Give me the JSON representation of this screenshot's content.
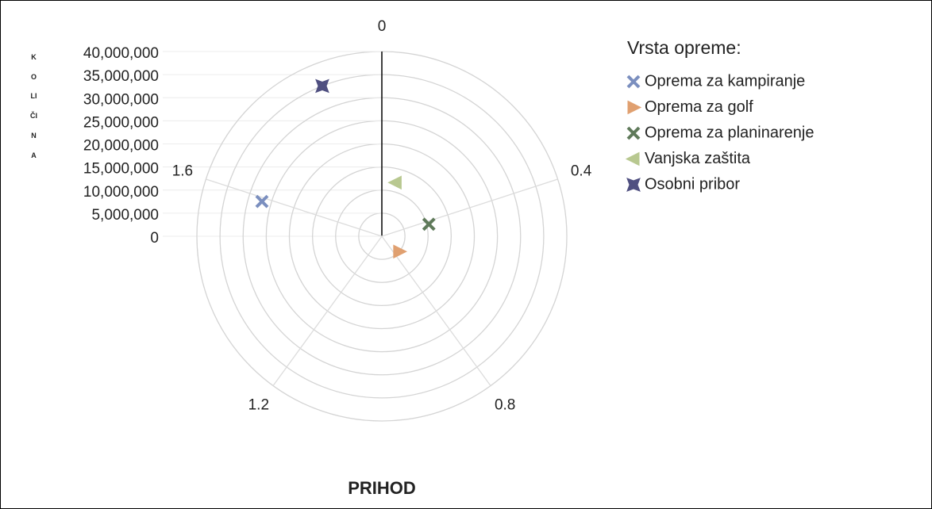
{
  "chart_data": {
    "type": "polar-scatter",
    "x_label": "PRIHOD",
    "y_label": "KOLIČINA",
    "legend_title": "Vrsta opreme:",
    "xlim": [
      0,
      2
    ],
    "xticks": [
      0,
      0.4,
      0.8,
      1.2,
      1.6
    ],
    "ylim": [
      0,
      40000000
    ],
    "yticks": [
      {
        "value": 0,
        "label": "0"
      },
      {
        "value": 5000000,
        "label": "5,000,000"
      },
      {
        "value": 10000000,
        "label": "10,000,000"
      },
      {
        "value": 15000000,
        "label": "15,000,000"
      },
      {
        "value": 20000000,
        "label": "20,000,000"
      },
      {
        "value": 25000000,
        "label": "25,000,000"
      },
      {
        "value": 30000000,
        "label": "30,000,000"
      },
      {
        "value": 35000000,
        "label": "35,000,000"
      },
      {
        "value": 40000000,
        "label": "40,000,000"
      }
    ],
    "legend": "right",
    "series": [
      {
        "name": "Oprema za kampiranje",
        "color": "#7b8fbf",
        "marker": "x",
        "x": [
          1.59
        ],
        "values": [
          27000000
        ]
      },
      {
        "name": "Oprema za golf",
        "color": "#e0a070",
        "marker": "triangle-right",
        "x": [
          0.73
        ],
        "values": [
          5000000
        ]
      },
      {
        "name": "Oprema za planinarenje",
        "color": "#5f7a5a",
        "marker": "x",
        "x": [
          0.42
        ],
        "values": [
          10500000
        ]
      },
      {
        "name": "Vanjska zaštita",
        "color": "#b8c890",
        "marker": "triangle-left",
        "x": [
          0.08
        ],
        "values": [
          12000000
        ]
      },
      {
        "name": "Osobni pribor",
        "color": "#4f4f80",
        "marker": "bowtie",
        "x": [
          1.88
        ],
        "values": [
          35000000
        ]
      }
    ]
  }
}
